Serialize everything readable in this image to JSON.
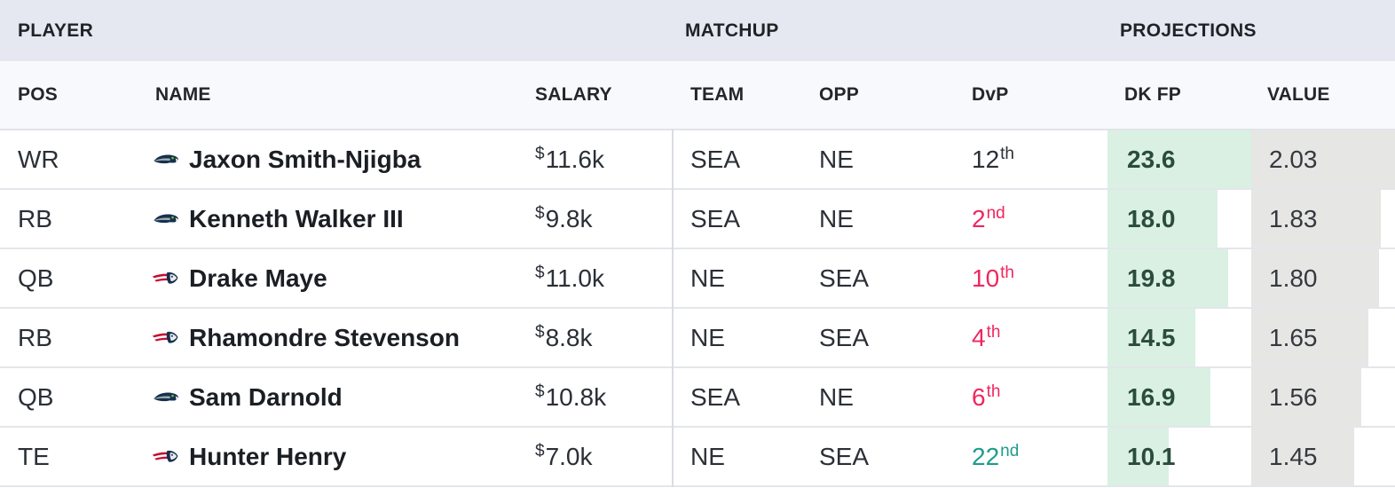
{
  "colors": {
    "group_header_bg": "#e5e8f0",
    "col_header_bg": "#f8f9fc",
    "sort_bar": "#33363c",
    "dk_fp_bar": "#d9f0e3",
    "dk_fp_text": "#2b4c3d",
    "value_bar": "#e6e6e4",
    "value_text": "#35393f",
    "rank_neutral": "#2b2f36",
    "rank_bad": "#f0265f",
    "rank_good": "#1e9c8c",
    "seahawks_navy": "#15314f",
    "seahawks_green": "#69be28",
    "seahawks_silver": "#a5acaf",
    "patriots_navy": "#14304e",
    "patriots_red": "#c60c30"
  },
  "table": {
    "group_headers": [
      {
        "label": "PLAYER"
      },
      {
        "label": "MATCHUP"
      },
      {
        "label": "PROJECTIONS"
      }
    ],
    "columns": [
      "POS",
      "NAME",
      "SALARY",
      "TEAM",
      "OPP",
      "DvP",
      "DK FP",
      "VALUE"
    ],
    "sorted_by": "VALUE",
    "rows": [
      {
        "pos": "WR",
        "team_icon": "seahawks",
        "name": "Jaxon Smith-Njigba",
        "salary": {
          "currency": "$",
          "amount": "11.6k"
        },
        "team": "SEA",
        "opp": "NE",
        "dvp": {
          "rank": "12",
          "suffix": "th",
          "tone": "neutral"
        },
        "dk_fp": "23.6",
        "value": "2.03"
      },
      {
        "pos": "RB",
        "team_icon": "seahawks",
        "name": "Kenneth Walker III",
        "salary": {
          "currency": "$",
          "amount": "9.8k"
        },
        "team": "SEA",
        "opp": "NE",
        "dvp": {
          "rank": "2",
          "suffix": "nd",
          "tone": "bad"
        },
        "dk_fp": "18.0",
        "value": "1.83"
      },
      {
        "pos": "QB",
        "team_icon": "patriots",
        "name": "Drake Maye",
        "salary": {
          "currency": "$",
          "amount": "11.0k"
        },
        "team": "NE",
        "opp": "SEA",
        "dvp": {
          "rank": "10",
          "suffix": "th",
          "tone": "bad"
        },
        "dk_fp": "19.8",
        "value": "1.80"
      },
      {
        "pos": "RB",
        "team_icon": "patriots",
        "name": "Rhamondre Stevenson",
        "salary": {
          "currency": "$",
          "amount": "8.8k"
        },
        "team": "NE",
        "opp": "SEA",
        "dvp": {
          "rank": "4",
          "suffix": "th",
          "tone": "bad"
        },
        "dk_fp": "14.5",
        "value": "1.65"
      },
      {
        "pos": "QB",
        "team_icon": "seahawks",
        "name": "Sam Darnold",
        "salary": {
          "currency": "$",
          "amount": "10.8k"
        },
        "team": "SEA",
        "opp": "NE",
        "dvp": {
          "rank": "6",
          "suffix": "th",
          "tone": "bad"
        },
        "dk_fp": "16.9",
        "value": "1.56"
      },
      {
        "pos": "TE",
        "team_icon": "patriots",
        "name": "Hunter Henry",
        "salary": {
          "currency": "$",
          "amount": "7.0k"
        },
        "team": "NE",
        "opp": "SEA",
        "dvp": {
          "rank": "22",
          "suffix": "nd",
          "tone": "good"
        },
        "dk_fp": "10.1",
        "value": "1.45"
      }
    ]
  }
}
